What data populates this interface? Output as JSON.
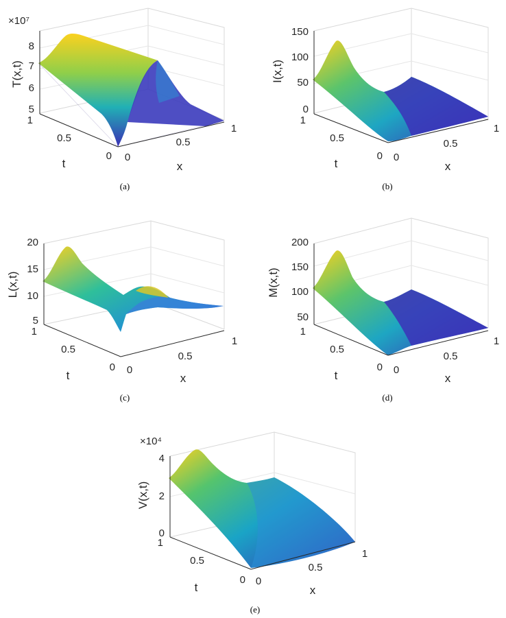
{
  "chart_data": [
    {
      "type": "surface",
      "panel": "(a)",
      "zlabel": "T(x,t)",
      "xlabel": "x",
      "ylabel": "t",
      "exponent": "×10⁷",
      "z_ticks": [
        "5",
        "6",
        "7",
        "8"
      ],
      "x_ticks": [
        "0",
        "0.5",
        "1"
      ],
      "t_ticks": [
        "0",
        "0.5",
        "1"
      ],
      "zlim": [
        5,
        8.8
      ],
      "colors": {
        "low": "#3b2fb5",
        "mid": "#1fb6b0",
        "high": "#fbd11f"
      }
    },
    {
      "type": "surface",
      "panel": "(b)",
      "zlabel": "I(x,t)",
      "xlabel": "x",
      "ylabel": "t",
      "exponent": "",
      "z_ticks": [
        "0",
        "50",
        "100",
        "150"
      ],
      "x_ticks": [
        "0",
        "0.5",
        "1"
      ],
      "t_ticks": [
        "0",
        "0.5",
        "1"
      ],
      "zlim": [
        0,
        160
      ],
      "colors": {
        "low": "#3b2fb5",
        "mid": "#1fb6b0",
        "high": "#fbd11f"
      }
    },
    {
      "type": "surface",
      "panel": "(c)",
      "zlabel": "L(x,t)",
      "xlabel": "x",
      "ylabel": "t",
      "exponent": "",
      "z_ticks": [
        "5",
        "10",
        "15",
        "20"
      ],
      "x_ticks": [
        "0",
        "0.5",
        "1"
      ],
      "t_ticks": [
        "0",
        "0.5",
        "1"
      ],
      "zlim": [
        5,
        20
      ],
      "colors": {
        "low": "#3b2fb5",
        "mid": "#1fb6b0",
        "high": "#fbd11f"
      }
    },
    {
      "type": "surface",
      "panel": "(d)",
      "zlabel": "M(x,t)",
      "xlabel": "x",
      "ylabel": "t",
      "exponent": "",
      "z_ticks": [
        "50",
        "100",
        "150",
        "200"
      ],
      "x_ticks": [
        "0",
        "0.5",
        "1"
      ],
      "t_ticks": [
        "0",
        "0.5",
        "1"
      ],
      "zlim": [
        40,
        210
      ],
      "colors": {
        "low": "#3b2fb5",
        "mid": "#1fb6b0",
        "high": "#fbd11f"
      }
    },
    {
      "type": "surface",
      "panel": "(e)",
      "zlabel": "V(x,t)",
      "xlabel": "x",
      "ylabel": "t",
      "exponent": "×10⁴",
      "z_ticks": [
        "0",
        "2",
        "4"
      ],
      "x_ticks": [
        "0",
        "0.5",
        "1"
      ],
      "t_ticks": [
        "0",
        "0.5",
        "1"
      ],
      "zlim": [
        0,
        4.2
      ],
      "colors": {
        "low": "#3b2fb5",
        "mid": "#1fb6b0",
        "high": "#fbd11f"
      }
    }
  ]
}
